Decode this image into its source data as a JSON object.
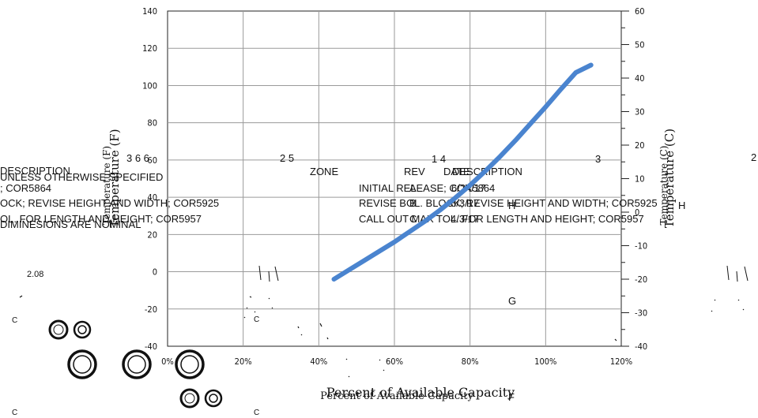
{
  "chart_data": {
    "type": "line",
    "xlabel": "Percent of Available Capacity",
    "xlabel_ghost": "Percent of Available Capacity",
    "ylabel_left": "Temperature (F)",
    "ylabel_left_ghost": "Temperature (F)",
    "ylabel_right": "Temperature (C)",
    "ylabel_right_ghost": "Temperature (C)",
    "x_ticks": [
      "0%",
      "20%",
      "40%",
      "60%",
      "80%",
      "100%",
      "120%"
    ],
    "y_left_ticks": [
      "140",
      "120",
      "100",
      "80",
      "60",
      "40",
      "20",
      "0",
      "-20",
      "-40"
    ],
    "y_right_ticks": [
      "60",
      "50",
      "40",
      "30",
      "20",
      "10",
      "0",
      "-10",
      "-20",
      "-30",
      "-40"
    ],
    "xlim": [
      0,
      120
    ],
    "ylim_left": [
      -40,
      140
    ],
    "ylim_right": [
      -40,
      60
    ],
    "grid": true,
    "line_color": "#4a84cf",
    "series": [
      {
        "x": [
          44,
          48,
          52,
          56,
          60,
          64,
          68,
          72,
          76,
          80,
          84,
          88,
          92,
          96,
          100,
          104,
          108,
          112
        ],
        "y": [
          -4,
          1,
          6,
          11,
          16,
          21.5,
          27,
          33,
          39.5,
          46.5,
          54,
          62,
          70.5,
          79.5,
          88.5,
          98,
          107,
          111
        ]
      }
    ]
  },
  "overlay": {
    "description_header": "DESCRIPTION",
    "unless_note": "UNLESS OTHERWISE SPECIFIED",
    "cor5864_left": "; COR5864",
    "revise_left": "OCK; REVISE HEIGHT AND WIDTH; COR5925",
    "tol_left": "OL. FOR LENGTH AND HEIGHT; COR5957",
    "dimensions_note": "DIMINESIONS ARE NOMINAL",
    "col_nums_left": "3 6 6",
    "col_nums_mid": "2 5",
    "col_nums_right": "1 4",
    "col_num_3": "3",
    "col_num_2": "2",
    "zone": "ZONE",
    "rev": "REV",
    "date": "DATE",
    "description": "DESCRIPTION",
    "initial_release": "INITIAL RELEASE; COR5864",
    "rev_a": "A",
    "date_a": "6/24/17",
    "revise_block": "REVISE BOL. BLOCK; REVISE HEIGHT AND WIDTH; COR5925",
    "rev_b": "B",
    "date_b": "8/3/17",
    "call_out": "CALL OUT MAX TOL. FOR LENGTH AND HEIGHT; COR5957",
    "rev_c": "C",
    "date_c": "4/3/17",
    "zone_h": "H",
    "zone_h2": "H",
    "zone_g": "G",
    "zone_f": "F",
    "dim_value": "2.08",
    "c_left_1": "C",
    "c_left_2": "C",
    "c_mid_1": "C",
    "c_mid_2": "C"
  }
}
